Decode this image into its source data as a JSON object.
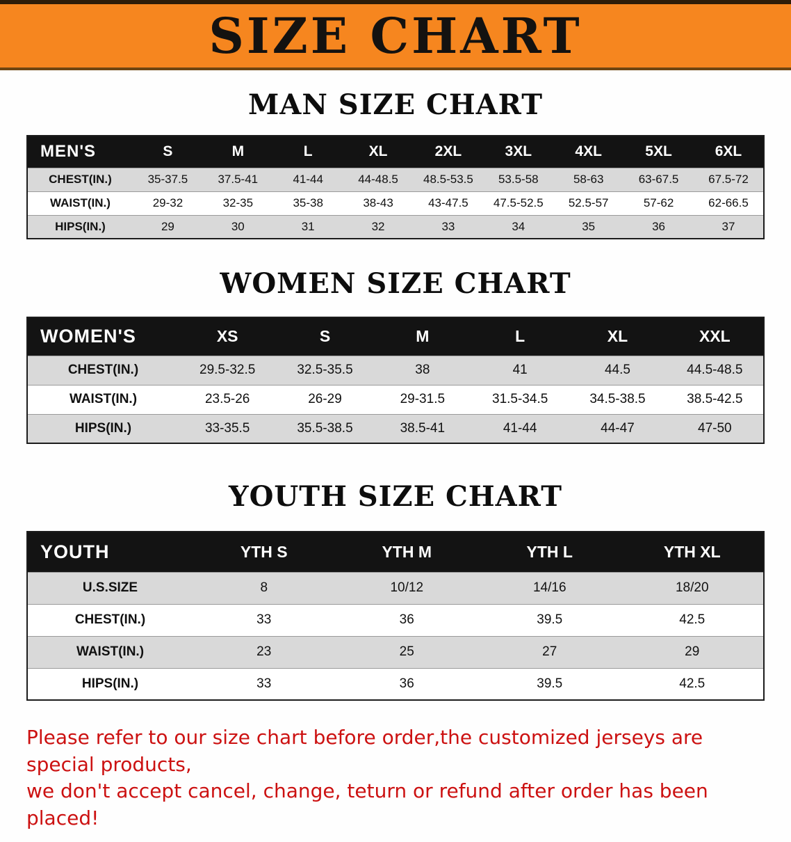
{
  "banner": {
    "title": "SIZE CHART",
    "bg_color": "#f6861f"
  },
  "sections": [
    {
      "heading": "MAN SIZE CHART",
      "table": {
        "corner": "MEN'S",
        "columns": [
          "S",
          "M",
          "L",
          "XL",
          "2XL",
          "3XL",
          "4XL",
          "5XL",
          "6XL"
        ],
        "rows": [
          {
            "label": "CHEST(IN.)",
            "values": [
              "35-37.5",
              "37.5-41",
              "41-44",
              "44-48.5",
              "48.5-53.5",
              "53.5-58",
              "58-63",
              "63-67.5",
              "67.5-72"
            ]
          },
          {
            "label": "WAIST(IN.)",
            "values": [
              "29-32",
              "32-35",
              "35-38",
              "38-43",
              "43-47.5",
              "47.5-52.5",
              "52.5-57",
              "57-62",
              "62-66.5"
            ]
          },
          {
            "label": "HIPS(IN.)",
            "values": [
              "29",
              "30",
              "31",
              "32",
              "33",
              "34",
              "35",
              "36",
              "37"
            ]
          }
        ]
      }
    },
    {
      "heading": "WOMEN SIZE CHART",
      "table": {
        "corner": "WOMEN'S",
        "columns": [
          "XS",
          "S",
          "M",
          "L",
          "XL",
          "XXL"
        ],
        "rows": [
          {
            "label": "CHEST(IN.)",
            "values": [
              "29.5-32.5",
              "32.5-35.5",
              "38",
              "41",
              "44.5",
              "44.5-48.5"
            ]
          },
          {
            "label": "WAIST(IN.)",
            "values": [
              "23.5-26",
              "26-29",
              "29-31.5",
              "31.5-34.5",
              "34.5-38.5",
              "38.5-42.5"
            ]
          },
          {
            "label": "HIPS(IN.)",
            "values": [
              "33-35.5",
              "35.5-38.5",
              "38.5-41",
              "41-44",
              "44-47",
              "47-50"
            ]
          }
        ]
      }
    },
    {
      "heading": "YOUTH SIZE CHART",
      "table": {
        "corner": "YOUTH",
        "columns": [
          "YTH S",
          "YTH M",
          "YTH L",
          "YTH XL"
        ],
        "rows": [
          {
            "label": "U.S.SIZE",
            "values": [
              "8",
              "10/12",
              "14/16",
              "18/20"
            ]
          },
          {
            "label": "CHEST(IN.)",
            "values": [
              "33",
              "36",
              "39.5",
              "42.5"
            ]
          },
          {
            "label": "WAIST(IN.)",
            "values": [
              "23",
              "25",
              "27",
              "29"
            ]
          },
          {
            "label": "HIPS(IN.)",
            "values": [
              "33",
              "36",
              "39.5",
              "42.5"
            ]
          }
        ]
      }
    }
  ],
  "disclaimer": {
    "line1": "Please refer to our size chart before order,the customized jerseys are special products,",
    "line2": "we don't accept cancel, change, teturn or refund after order has been placed!",
    "color": "#cc1111"
  }
}
